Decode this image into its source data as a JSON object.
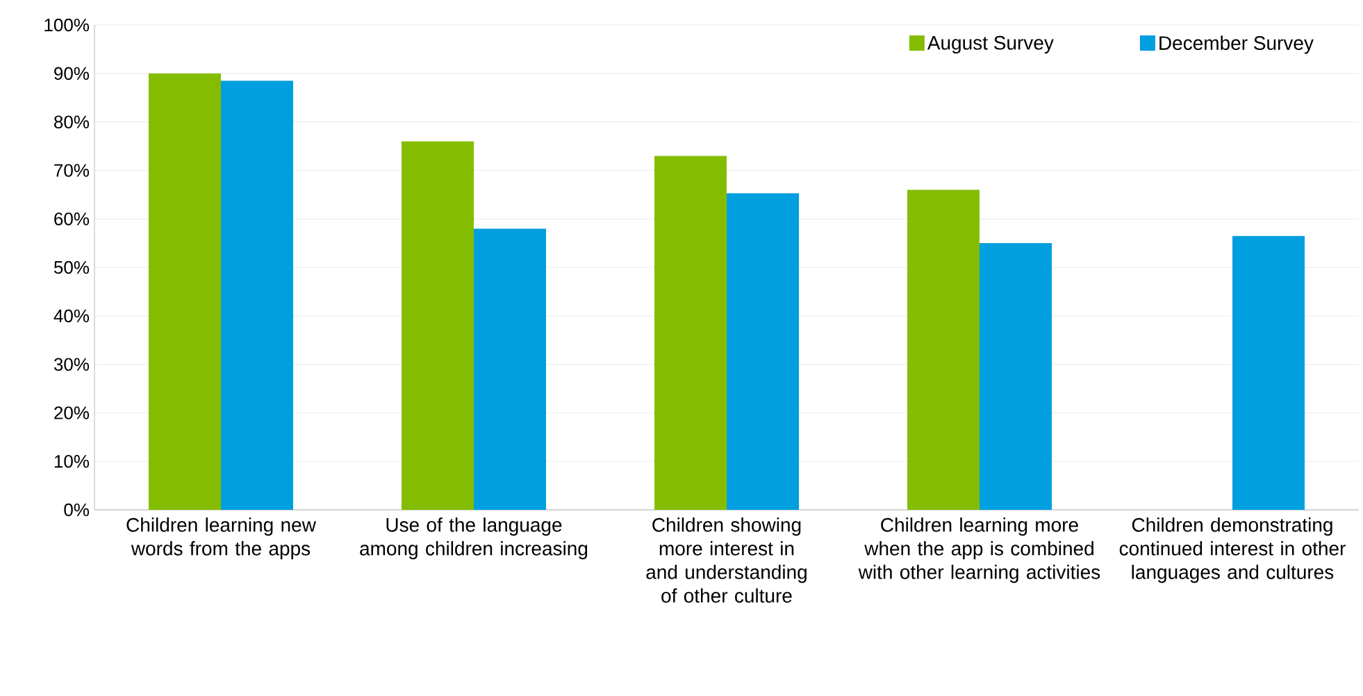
{
  "chart_data": {
    "type": "bar",
    "categories": [
      "Children learning new words from the apps",
      "Use of the language among children increasing",
      "Children showing more interest in and understanding of other culture",
      "Children learning more when the app is combined with other learning activities",
      "Children demonstrating continued interest in other languages and cultures"
    ],
    "series": [
      {
        "name": "August Survey",
        "color": "#84bd00",
        "values": [
          90,
          76,
          73,
          66,
          null
        ]
      },
      {
        "name": "December Survey",
        "color": "#009fdf",
        "values": [
          88.5,
          58,
          65.3,
          55,
          56.5
        ]
      }
    ],
    "ylim": [
      0,
      100
    ],
    "yticks": [
      {
        "value": 0,
        "label": "0%"
      },
      {
        "value": 10,
        "label": "10%"
      },
      {
        "value": 20,
        "label": "20%"
      },
      {
        "value": 30,
        "label": "30%"
      },
      {
        "value": 40,
        "label": "40%"
      },
      {
        "value": 50,
        "label": "50%"
      },
      {
        "value": 60,
        "label": "60%"
      },
      {
        "value": 70,
        "label": "70%"
      },
      {
        "value": 80,
        "label": "80%"
      },
      {
        "value": 90,
        "label": "90%"
      },
      {
        "value": 100,
        "label": "100%"
      }
    ],
    "grid": "y",
    "legend": "top right"
  }
}
